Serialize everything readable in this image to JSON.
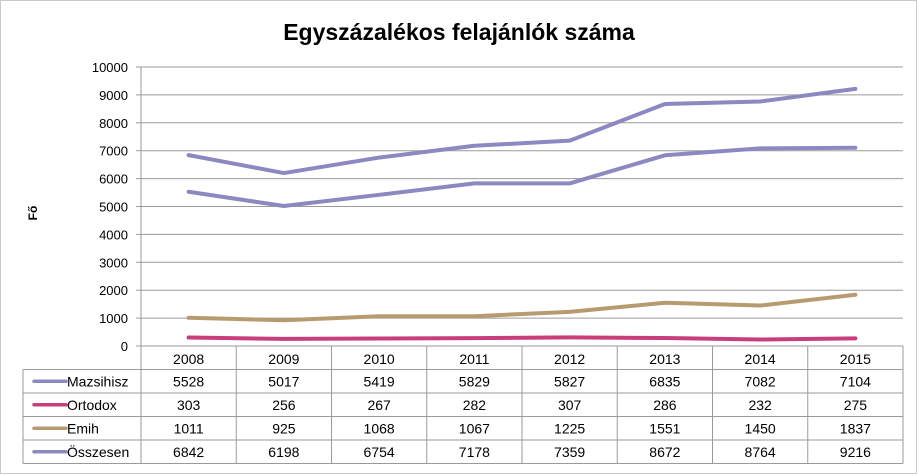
{
  "chart_data": {
    "type": "line",
    "title": "Egyszázalékos felajánlók száma",
    "ylabel": "Fő",
    "xlabel": "",
    "ylim": [
      0,
      10000
    ],
    "yticks": [
      "0",
      "1000",
      "2000",
      "3000",
      "4000",
      "5000",
      "6000",
      "7000",
      "8000",
      "9000",
      "10000"
    ],
    "categories": [
      "2008",
      "2009",
      "2010",
      "2011",
      "2012",
      "2013",
      "2014",
      "2015"
    ],
    "grid": true,
    "legend": "data-table-left",
    "series": [
      {
        "name": "Mazsihisz",
        "color": "#8c88c0",
        "values": [
          5528,
          5017,
          5419,
          5829,
          5827,
          6835,
          7082,
          7104
        ]
      },
      {
        "name": "Ortodox",
        "color": "#c83d7c",
        "values": [
          303,
          256,
          267,
          282,
          307,
          286,
          232,
          275
        ]
      },
      {
        "name": "Emih",
        "color": "#b79b70",
        "values": [
          1011,
          925,
          1068,
          1067,
          1225,
          1551,
          1450,
          1837
        ]
      },
      {
        "name": "Összesen",
        "color": "#8c88c0",
        "values": [
          6842,
          6198,
          6754,
          7178,
          7359,
          8672,
          8764,
          9216
        ]
      }
    ]
  }
}
